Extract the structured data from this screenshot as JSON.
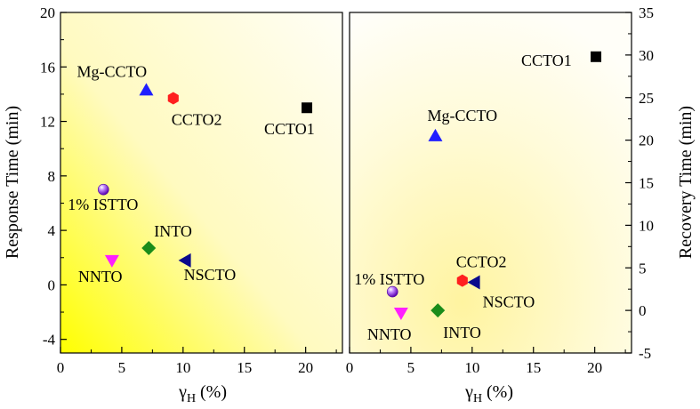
{
  "chart_data": [
    {
      "type": "scatter",
      "panel": "left",
      "xlabel": "(%)",
      "xlabel_symbol": "γ",
      "xlabel_sub": "H",
      "ylabel": "Response Time (min)",
      "xlim": [
        0,
        23
      ],
      "ylim": [
        -5,
        20
      ],
      "xticks": [
        0,
        5,
        10,
        15,
        20
      ],
      "yticks": [
        -4,
        0,
        4,
        8,
        12,
        16,
        20
      ],
      "points": [
        {
          "label": "CCTO1",
          "x": 20.1,
          "y": 13.0,
          "marker": "square",
          "color": "#000000"
        },
        {
          "label": "CCTO2",
          "x": 9.2,
          "y": 13.7,
          "marker": "hexagon",
          "color": "#ff1f1f"
        },
        {
          "label": "Mg-CCTO",
          "x": 7.0,
          "y": 14.3,
          "marker": "triangle-up",
          "color": "#1f1fff"
        },
        {
          "label": "1% ISTTO",
          "x": 3.5,
          "y": 7.0,
          "marker": "sphere",
          "color": "#9b30ff"
        },
        {
          "label": "INTO",
          "x": 7.2,
          "y": 2.7,
          "marker": "diamond",
          "color": "#1a8c1a"
        },
        {
          "label": "NSCTO",
          "x": 10.2,
          "y": 1.8,
          "marker": "triangle-left",
          "color": "#0a0a8c"
        },
        {
          "label": "NNTO",
          "x": 4.2,
          "y": 1.8,
          "marker": "triangle-down",
          "color": "#ff1fff"
        }
      ]
    },
    {
      "type": "scatter",
      "panel": "right",
      "xlabel": "(%)",
      "xlabel_symbol": "γ",
      "xlabel_sub": "H",
      "ylabel": "Recovery Time (min)",
      "xlim": [
        0,
        23
      ],
      "ylim": [
        -5,
        35
      ],
      "xticks": [
        0,
        5,
        10,
        15,
        20
      ],
      "yticks": [
        -5,
        0,
        5,
        10,
        15,
        20,
        25,
        30,
        35
      ],
      "points": [
        {
          "label": "CCTO1",
          "x": 20.1,
          "y": 29.8,
          "marker": "square",
          "color": "#000000"
        },
        {
          "label": "Mg-CCTO",
          "x": 7.0,
          "y": 20.5,
          "marker": "triangle-up",
          "color": "#1f1fff"
        },
        {
          "label": "CCTO2",
          "x": 9.2,
          "y": 3.5,
          "marker": "hexagon",
          "color": "#ff1f1f"
        },
        {
          "label": "NSCTO",
          "x": 10.2,
          "y": 3.3,
          "marker": "triangle-left",
          "color": "#0a0a8c"
        },
        {
          "label": "1% ISTTO",
          "x": 3.5,
          "y": 2.2,
          "marker": "sphere",
          "color": "#9b30ff"
        },
        {
          "label": "INTO",
          "x": 7.2,
          "y": 0.0,
          "marker": "diamond",
          "color": "#1a8c1a"
        },
        {
          "label": "NNTO",
          "x": 4.2,
          "y": -0.3,
          "marker": "triangle-down",
          "color": "#ff1fff"
        }
      ]
    }
  ]
}
